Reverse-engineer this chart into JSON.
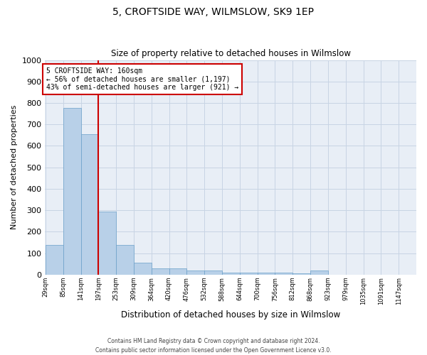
{
  "title": "5, CROFTSIDE WAY, WILMSLOW, SK9 1EP",
  "subtitle": "Size of property relative to detached houses in Wilmslow",
  "xlabel": "Distribution of detached houses by size in Wilmslow",
  "ylabel": "Number of detached properties",
  "bar_labels": [
    "29sqm",
    "85sqm",
    "141sqm",
    "197sqm",
    "253sqm",
    "309sqm",
    "364sqm",
    "420sqm",
    "476sqm",
    "532sqm",
    "588sqm",
    "644sqm",
    "700sqm",
    "756sqm",
    "812sqm",
    "868sqm",
    "923sqm",
    "979sqm",
    "1035sqm",
    "1091sqm",
    "1147sqm"
  ],
  "bar_values": [
    140,
    778,
    655,
    295,
    138,
    57,
    30,
    30,
    18,
    18,
    10,
    10,
    8,
    8,
    5,
    18,
    0,
    0,
    0,
    0,
    0
  ],
  "bar_color": "#b8d0e8",
  "bar_edge_color": "#6a9fc8",
  "grid_color": "#c8d4e4",
  "bg_color": "#e8eef6",
  "annotation_text": "5 CROFTSIDE WAY: 160sqm\n← 56% of detached houses are smaller (1,197)\n43% of semi-detached houses are larger (921) →",
  "annotation_box_color": "#ffffff",
  "annotation_box_edge": "#cc0000",
  "vline_color": "#cc0000",
  "ylim": [
    0,
    1000
  ],
  "yticks": [
    0,
    100,
    200,
    300,
    400,
    500,
    600,
    700,
    800,
    900,
    1000
  ],
  "footer_line1": "Contains HM Land Registry data © Crown copyright and database right 2024.",
  "footer_line2": "Contains public sector information licensed under the Open Government Licence v3.0."
}
